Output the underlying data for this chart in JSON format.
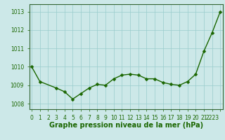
{
  "x": [
    0,
    1,
    3,
    4,
    5,
    6,
    7,
    8,
    9,
    10,
    11,
    12,
    13,
    14,
    15,
    16,
    17,
    18,
    19,
    20,
    21,
    22,
    23
  ],
  "y": [
    1010.0,
    1009.2,
    1008.85,
    1008.65,
    1008.25,
    1008.55,
    1008.85,
    1009.05,
    1009.0,
    1009.35,
    1009.55,
    1009.6,
    1009.55,
    1009.35,
    1009.35,
    1009.15,
    1009.05,
    1009.0,
    1009.2,
    1009.6,
    1010.85,
    1011.85,
    1013.0
  ],
  "line_color": "#1a6600",
  "marker": "D",
  "marker_size": 2.5,
  "linewidth": 1.0,
  "background_color": "#cce8e8",
  "grid_color": "#99cccc",
  "xlabel": "Graphe pression niveau de la mer (hPa)",
  "xlabel_fontsize": 7,
  "xlabel_color": "#1a6600",
  "yticks": [
    1008,
    1009,
    1010,
    1011,
    1012,
    1013
  ],
  "xtick_labels": [
    "0",
    "1",
    "",
    "3",
    "4",
    "5",
    "6",
    "7",
    "8",
    "9",
    "10",
    "11",
    "12",
    "13",
    "14",
    "15",
    "16",
    "17",
    "18",
    "19",
    "20",
    "21",
    "2223"
  ],
  "xticks": [
    0,
    1,
    2,
    3,
    4,
    5,
    6,
    7,
    8,
    9,
    10,
    11,
    12,
    13,
    14,
    15,
    16,
    17,
    18,
    19,
    20,
    21,
    22
  ],
  "ylim": [
    1007.7,
    1013.4
  ],
  "xlim": [
    -0.3,
    23.3
  ],
  "tick_color": "#1a6600",
  "tick_fontsize": 5.5,
  "spine_color": "#336633"
}
